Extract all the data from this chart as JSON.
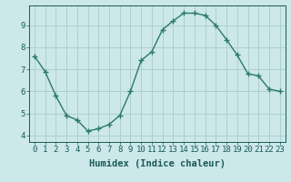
{
  "x": [
    0,
    1,
    2,
    3,
    4,
    5,
    6,
    7,
    8,
    9,
    10,
    11,
    12,
    13,
    14,
    15,
    16,
    17,
    18,
    19,
    20,
    21,
    22,
    23
  ],
  "y": [
    7.6,
    6.9,
    5.8,
    4.9,
    4.7,
    4.2,
    4.3,
    4.5,
    4.9,
    6.0,
    7.4,
    7.8,
    8.8,
    9.2,
    9.55,
    9.55,
    9.45,
    9.0,
    8.35,
    7.65,
    6.8,
    6.7,
    6.1,
    6.0
  ],
  "line_color": "#2a7a6a",
  "marker": "+",
  "marker_size": 4,
  "bg_color": "#cce8e8",
  "grid_color": "#aacccc",
  "xlabel": "Humidex (Indice chaleur)",
  "xlim": [
    -0.5,
    23.5
  ],
  "ylim": [
    3.7,
    9.9
  ],
  "yticks": [
    4,
    5,
    6,
    7,
    8,
    9
  ],
  "xticks": [
    0,
    1,
    2,
    3,
    4,
    5,
    6,
    7,
    8,
    9,
    10,
    11,
    12,
    13,
    14,
    15,
    16,
    17,
    18,
    19,
    20,
    21,
    22,
    23
  ],
  "tick_fontsize": 6.5,
  "xlabel_fontsize": 7.5
}
